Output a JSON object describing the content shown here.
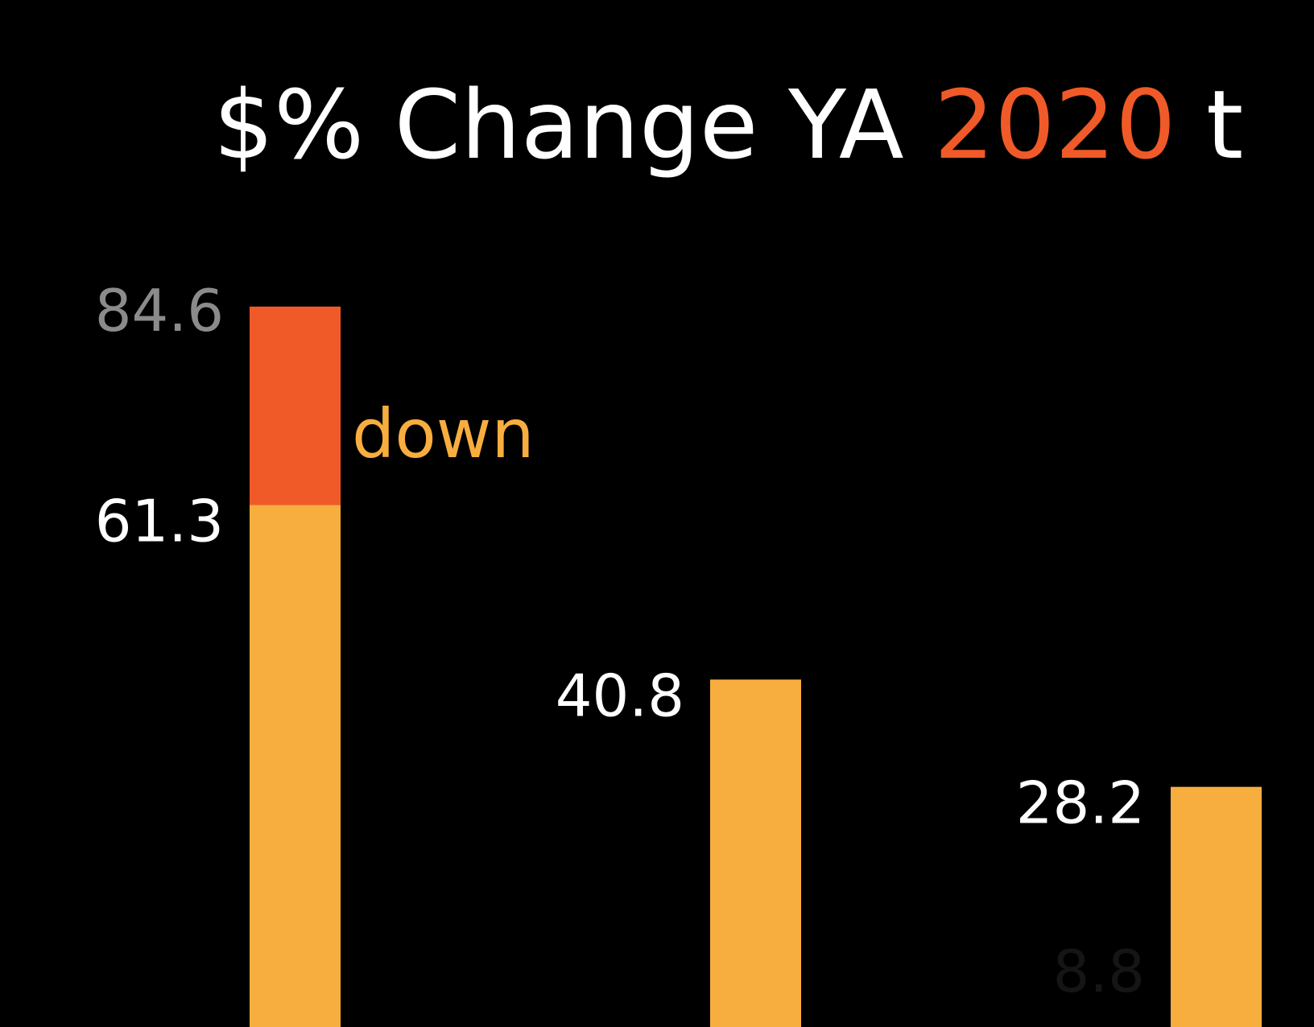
{
  "chart_data": {
    "type": "bar",
    "title": {
      "prefix": "$% Change YA ",
      "highlight": "2020",
      "suffix": " t"
    },
    "series": [
      {
        "name": "",
        "values": [
          61.3,
          40.8,
          28.2
        ]
      }
    ],
    "prior_values": [
      84.6,
      null,
      null
    ],
    "faded_labels": [
      null,
      null,
      "8.8"
    ],
    "labels": [
      "61.3",
      "40.8",
      "28.2"
    ],
    "prior_labels": [
      "84.6",
      "",
      ""
    ],
    "annotation": "down",
    "ylim": [
      0,
      90
    ],
    "grid": false,
    "legend": "none"
  },
  "colors": {
    "background": "#000000",
    "bar": "#f8ae3f",
    "prior_bar": "#f05a28",
    "title": "#ffffff",
    "highlight": "#f05a28",
    "label": "#ffffff",
    "prior_label": "#8b8b8b",
    "annotation": "#f8ae3f",
    "faded_label": "#151515"
  }
}
